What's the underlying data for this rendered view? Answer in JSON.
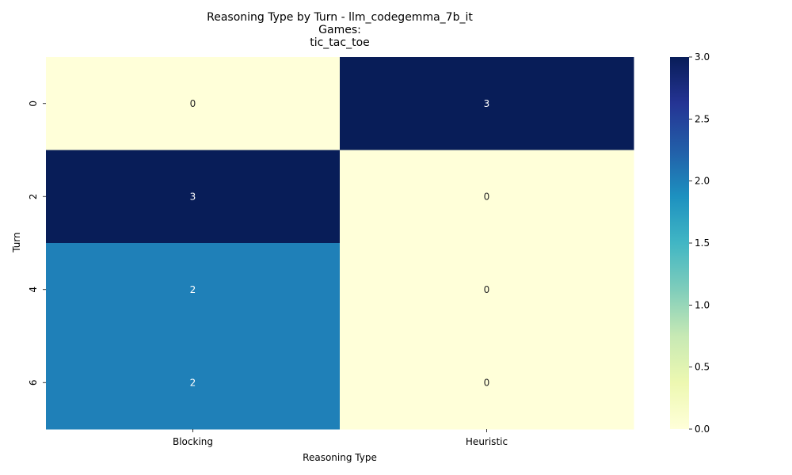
{
  "chart_data": {
    "type": "heatmap",
    "title_lines": [
      "Reasoning Type by Turn - llm_codegemma_7b_it",
      "Games:",
      "tic_tac_toe"
    ],
    "xlabel": "Reasoning Type",
    "ylabel": "Turn",
    "x_categories": [
      "Blocking",
      "Heuristic"
    ],
    "y_categories": [
      "0",
      "2",
      "4",
      "6"
    ],
    "values": [
      [
        0,
        3
      ],
      [
        3,
        0
      ],
      [
        2,
        0
      ],
      [
        2,
        0
      ]
    ],
    "vmin": 0,
    "vmax": 3,
    "colormap": "YlGnBu",
    "colorbar_ticks": [
      "0.0",
      "0.5",
      "1.0",
      "1.5",
      "2.0",
      "2.5",
      "3.0"
    ],
    "annotate": true
  }
}
